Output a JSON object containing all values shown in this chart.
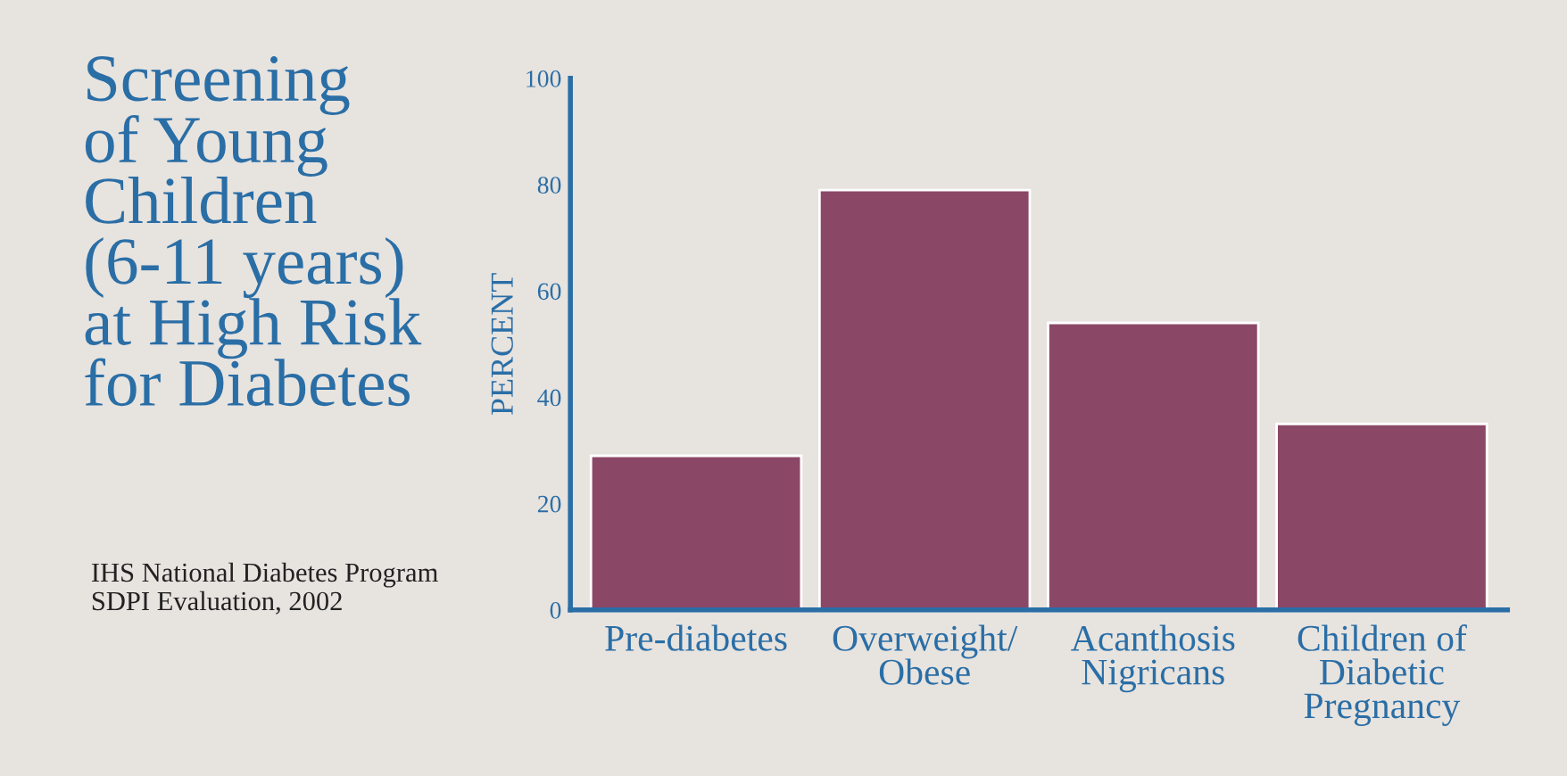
{
  "chart_data": {
    "type": "bar",
    "title": "Screening\nof Young\nChildren\n(6-11 years)\nat High Risk\nfor Diabetes",
    "ylabel": "PERCENT",
    "categories": [
      "Pre-diabetes",
      "Overweight/\nObese",
      "Acanthosis\nNigricans",
      "Children of\nDiabetic\nPregnancy"
    ],
    "values": [
      29,
      79,
      54,
      35
    ],
    "color": "#8b4766",
    "ylim": [
      0,
      100
    ],
    "yticks": [
      0,
      20,
      40,
      60,
      80,
      100
    ],
    "grid": false,
    "annotations": [
      "IHS National Diabetes Program\nSDPI Evaluation, 2002"
    ]
  }
}
